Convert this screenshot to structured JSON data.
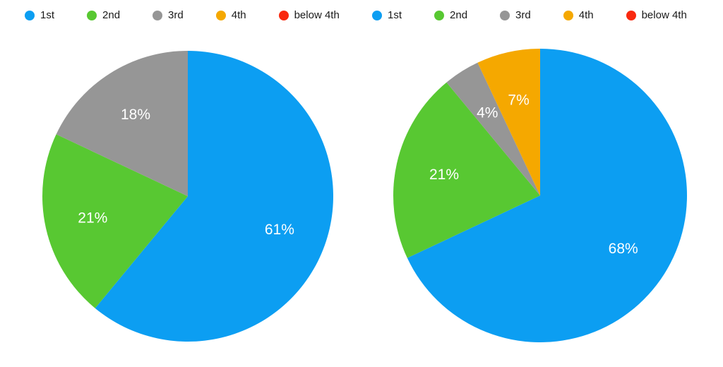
{
  "page": {
    "background": "#ffffff",
    "legend_text_color": "#1a1a1a"
  },
  "chart_data": [
    {
      "type": "pie",
      "title": "",
      "legend_position": "top",
      "direction": "clockwise",
      "start_angle_deg": 0,
      "categories": [
        "1st",
        "2nd",
        "3rd",
        "4th",
        "below 4th"
      ],
      "colors": [
        "#0C9EF2",
        "#58C832",
        "#969696",
        "#F5A800",
        "#F9290F"
      ],
      "values": [
        61,
        21,
        18,
        0,
        0
      ],
      "slice_labels": [
        "61%",
        "21%",
        "18%",
        "",
        ""
      ]
    },
    {
      "type": "pie",
      "title": "",
      "legend_position": "top",
      "direction": "clockwise",
      "start_angle_deg": 0,
      "categories": [
        "1st",
        "2nd",
        "3rd",
        "4th",
        "below 4th"
      ],
      "colors": [
        "#0C9EF2",
        "#58C832",
        "#969696",
        "#F5A800",
        "#F9290F"
      ],
      "values": [
        68,
        21,
        4,
        7,
        0
      ],
      "slice_labels": [
        "68%",
        "21%",
        "4%",
        "7%",
        ""
      ]
    }
  ]
}
